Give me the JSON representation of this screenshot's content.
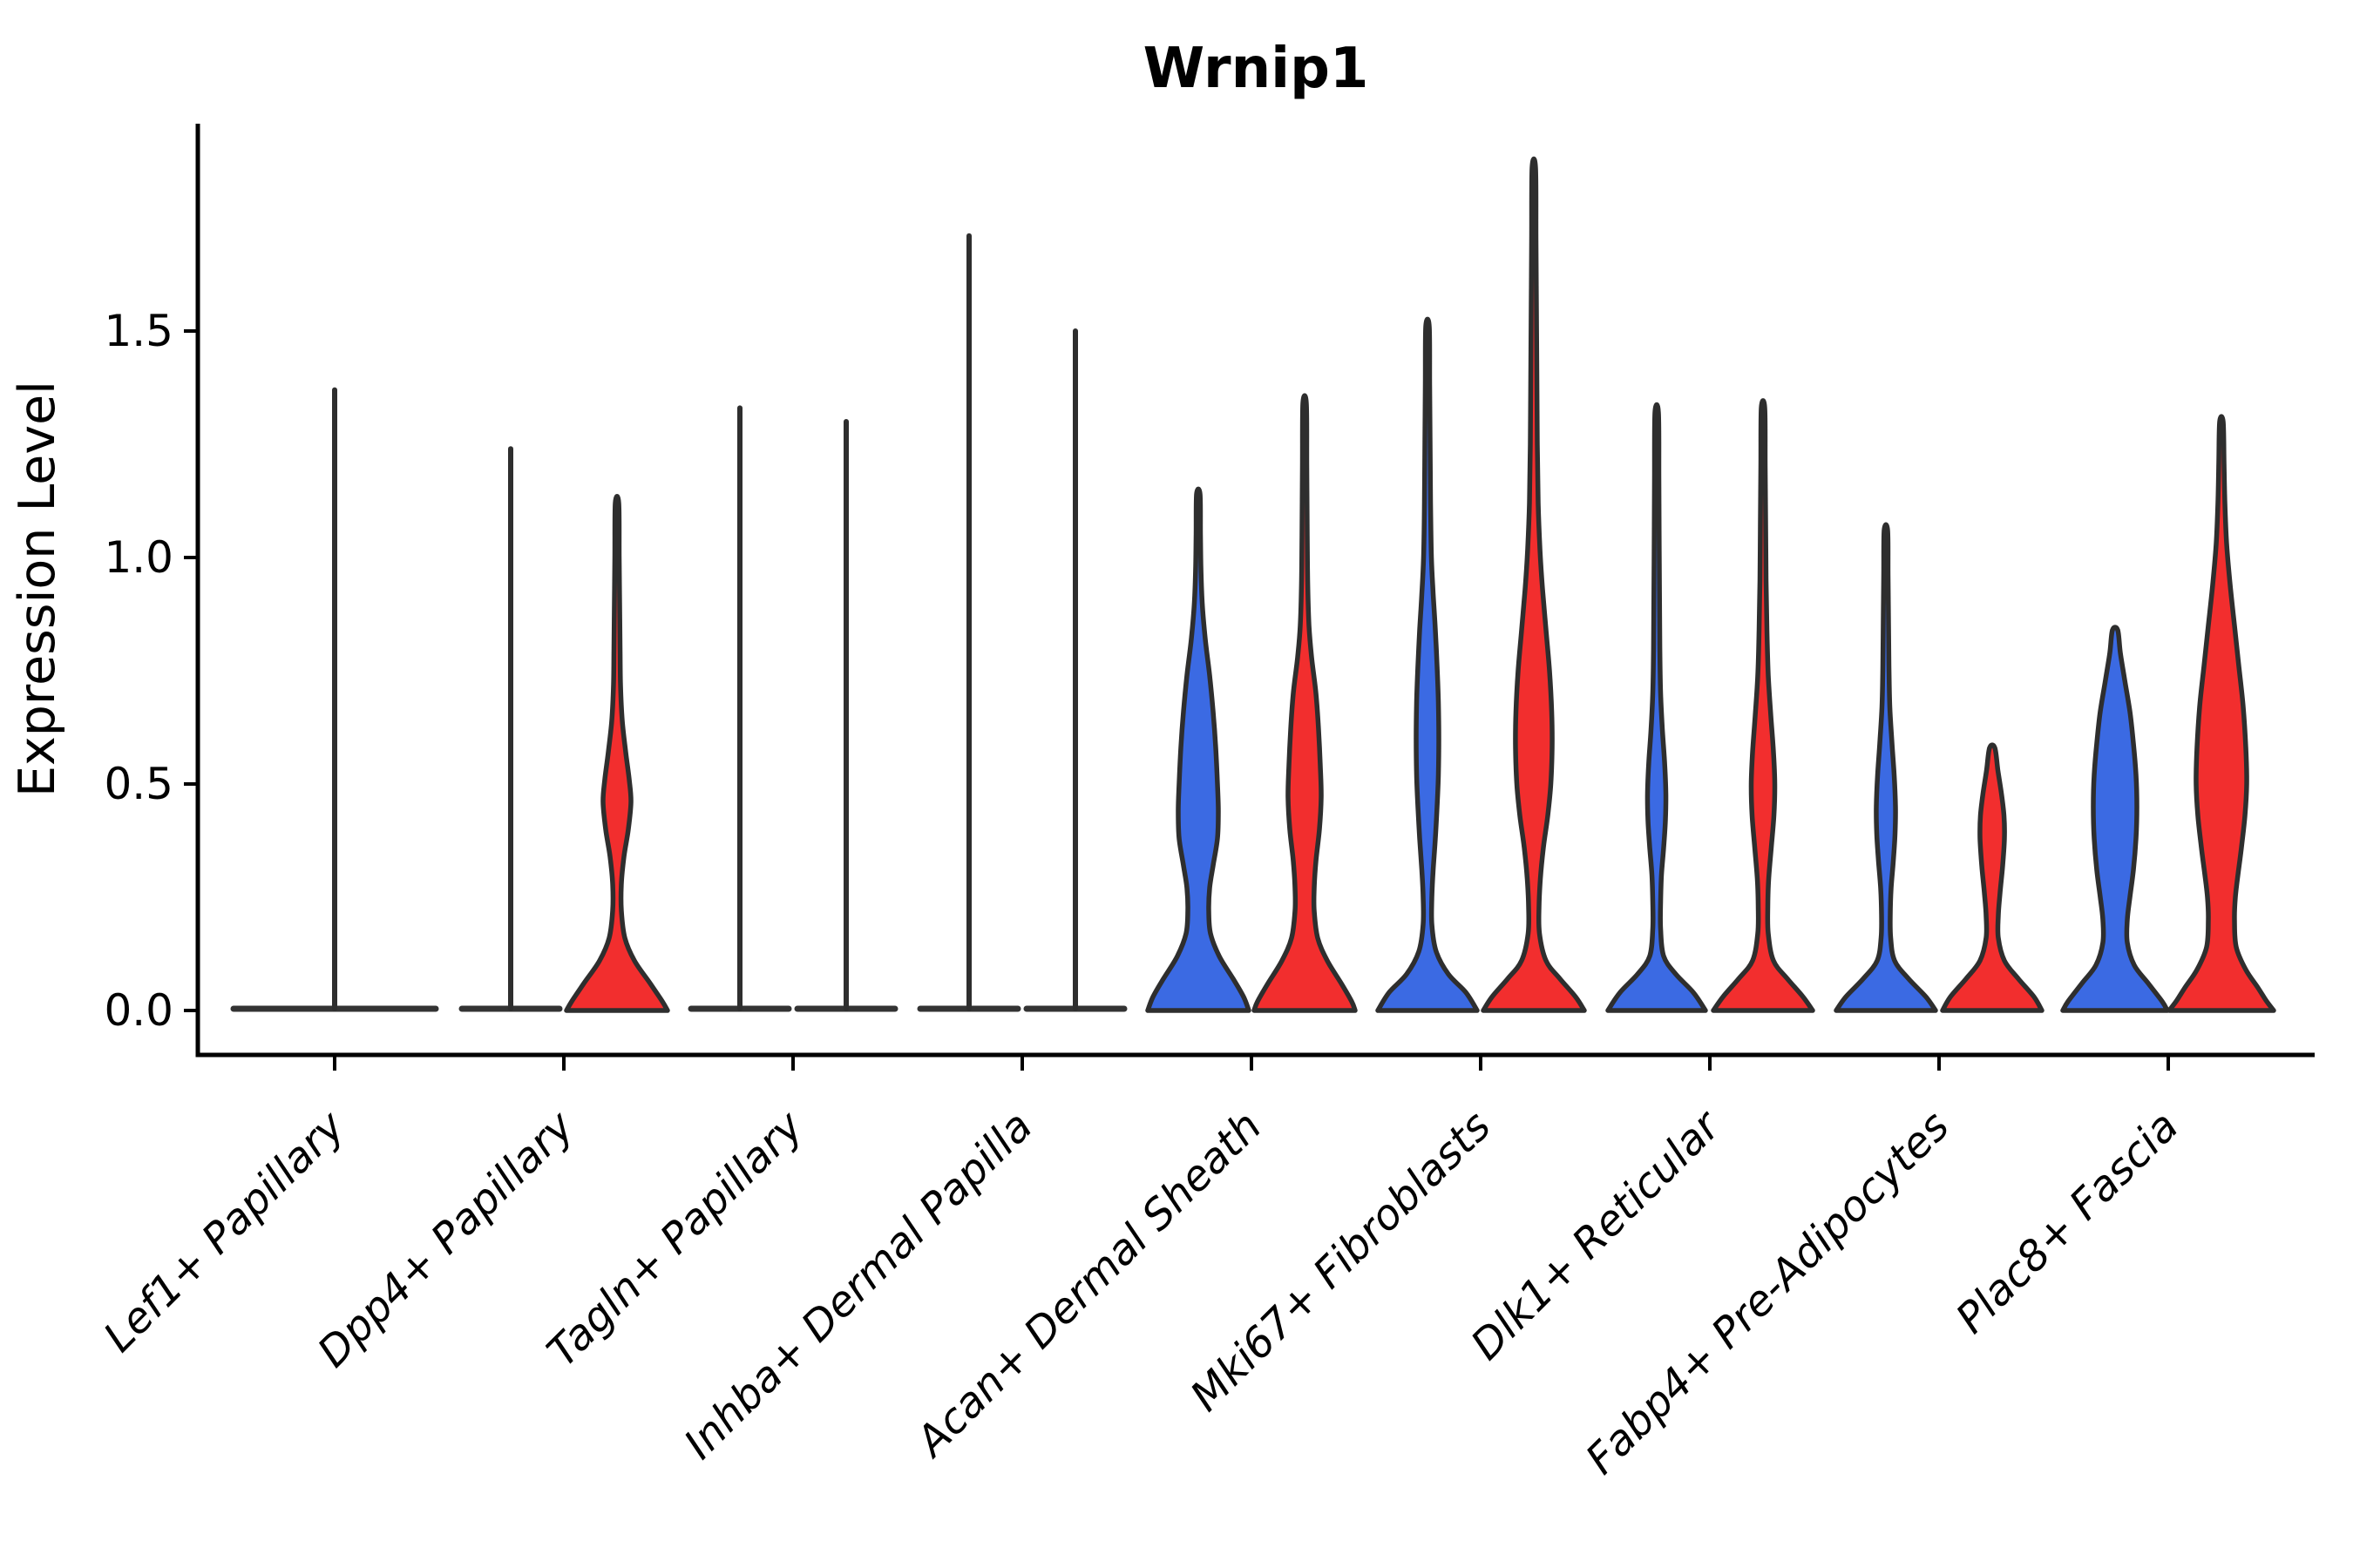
{
  "title": "Wrnip1",
  "y_axis": {
    "label": "Expression Level",
    "ticks": [
      "0.0",
      "0.5",
      "1.0",
      "1.5"
    ],
    "tick_values": [
      0.0,
      0.5,
      1.0,
      1.5
    ]
  },
  "x_axis": {
    "categories": [
      "Lef1+ Papillary",
      "Dpp4+ Papillary",
      "Tagln+ Papillary",
      "Inhba+ Dermal Papilla",
      "Acan+ Dermal Sheath",
      "Mki67+ Fibroblasts",
      "Dlk1+ Reticular",
      "Fabp4+ Pre-Adipocytes",
      "Plac8+ Fascia"
    ]
  },
  "colors": {
    "blue": "#3B6AE3",
    "red": "#F22E2E",
    "outline": "#2E2E2E",
    "flat_line": "#333333",
    "axis": "#000000",
    "text": "#000000"
  },
  "chart_data": {
    "type": "violin",
    "title": "Wrnip1",
    "ylabel": "Expression Level",
    "ylim": [
      -0.1,
      1.96
    ],
    "yticks": [
      0.0,
      0.5,
      1.0,
      1.5
    ],
    "grid": false,
    "legend": "none",
    "hues": [
      "blue",
      "red"
    ],
    "categories": [
      "Lef1+ Papillary",
      "Dpp4+ Papillary",
      "Tagln+ Papillary",
      "Inhba+ Dermal Papilla",
      "Acan+ Dermal Sheath",
      "Mki67+ Fibroblasts",
      "Dlk1+ Reticular",
      "Fabp4+ Pre-Adipocytes",
      "Plac8+ Fascia"
    ],
    "groups": [
      {
        "label": "Lef1+ Papillary",
        "violins": [
          {
            "hue": "none",
            "style": "flat",
            "offset": 0,
            "flat_halfwidth": 119,
            "max": 1.37
          }
        ]
      },
      {
        "label": "Dpp4+ Papillary",
        "violins": [
          {
            "hue": "blue",
            "style": "flat",
            "offset": -61,
            "flat_halfwidth": 59,
            "max": 1.24
          },
          {
            "hue": "red",
            "style": "violin",
            "offset": 61,
            "max": 1.12,
            "profile": [
              [
                1.12,
                2
              ],
              [
                1.0,
                2.5
              ],
              [
                0.9,
                3
              ],
              [
                0.8,
                3.5
              ],
              [
                0.72,
                4
              ],
              [
                0.64,
                6
              ],
              [
                0.57,
                10
              ],
              [
                0.51,
                14
              ],
              [
                0.46,
                16
              ],
              [
                0.4,
                13
              ],
              [
                0.34,
                8
              ],
              [
                0.28,
                5
              ],
              [
                0.22,
                5
              ],
              [
                0.16,
                9
              ],
              [
                0.11,
                20
              ],
              [
                0.06,
                38
              ],
              [
                0.02,
                52
              ],
              [
                0,
                58
              ]
            ]
          }
        ]
      },
      {
        "label": "Tagln+ Papillary",
        "violins": [
          {
            "hue": "blue",
            "style": "flat",
            "offset": -61,
            "flat_halfwidth": 59,
            "max": 1.33
          },
          {
            "hue": "red",
            "style": "flat",
            "offset": 61,
            "flat_halfwidth": 59,
            "max": 1.3
          }
        ]
      },
      {
        "label": "Inhba+ Dermal Papilla",
        "violins": [
          {
            "hue": "blue",
            "style": "flat",
            "offset": -61,
            "flat_halfwidth": 59,
            "max": 1.71
          },
          {
            "hue": "red",
            "style": "flat",
            "offset": 61,
            "flat_halfwidth": 59,
            "max": 1.5
          }
        ]
      },
      {
        "label": "Acan+ Dermal Sheath",
        "violins": [
          {
            "hue": "blue",
            "style": "violin",
            "offset": -61,
            "max": 1.14,
            "profile": [
              [
                1.14,
                2
              ],
              [
                1.05,
                2.5
              ],
              [
                0.98,
                3
              ],
              [
                0.9,
                4.5
              ],
              [
                0.82,
                8
              ],
              [
                0.74,
                13
              ],
              [
                0.66,
                17
              ],
              [
                0.58,
                20
              ],
              [
                0.5,
                22
              ],
              [
                0.44,
                23
              ],
              [
                0.38,
                22
              ],
              [
                0.32,
                17
              ],
              [
                0.27,
                13
              ],
              [
                0.22,
                12
              ],
              [
                0.17,
                14
              ],
              [
                0.12,
                24
              ],
              [
                0.07,
                40
              ],
              [
                0.03,
                52
              ],
              [
                0,
                58
              ]
            ]
          },
          {
            "hue": "red",
            "style": "violin",
            "offset": 61,
            "max": 1.34,
            "profile": [
              [
                1.34,
                2
              ],
              [
                1.2,
                2.5
              ],
              [
                1.05,
                3
              ],
              [
                0.95,
                3.5
              ],
              [
                0.85,
                5
              ],
              [
                0.78,
                8
              ],
              [
                0.7,
                13
              ],
              [
                0.62,
                16
              ],
              [
                0.54,
                18
              ],
              [
                0.47,
                19
              ],
              [
                0.4,
                17
              ],
              [
                0.33,
                13
              ],
              [
                0.27,
                11
              ],
              [
                0.22,
                11
              ],
              [
                0.16,
                15
              ],
              [
                0.11,
                26
              ],
              [
                0.06,
                42
              ],
              [
                0.02,
                54
              ],
              [
                0,
                58
              ]
            ]
          }
        ]
      },
      {
        "label": "Mki67+ Fibroblasts",
        "violins": [
          {
            "hue": "blue",
            "style": "violin",
            "offset": -61,
            "max": 1.51,
            "profile": [
              [
                1.51,
                2
              ],
              [
                1.38,
                2.5
              ],
              [
                1.25,
                3
              ],
              [
                1.12,
                3.5
              ],
              [
                1.0,
                4.5
              ],
              [
                0.92,
                6.5
              ],
              [
                0.84,
                9
              ],
              [
                0.76,
                11
              ],
              [
                0.68,
                12.5
              ],
              [
                0.6,
                13
              ],
              [
                0.52,
                12.5
              ],
              [
                0.45,
                11
              ],
              [
                0.38,
                9
              ],
              [
                0.31,
                6.5
              ],
              [
                0.25,
                5
              ],
              [
                0.19,
                5
              ],
              [
                0.13,
                10
              ],
              [
                0.08,
                24
              ],
              [
                0.04,
                44
              ],
              [
                0,
                57
              ]
            ]
          },
          {
            "hue": "red",
            "style": "violin",
            "offset": 61,
            "max": 1.86,
            "profile": [
              [
                1.86,
                2
              ],
              [
                1.7,
                2.5
              ],
              [
                1.55,
                3
              ],
              [
                1.4,
                3.5
              ],
              [
                1.25,
                4
              ],
              [
                1.12,
                5
              ],
              [
                1.02,
                7
              ],
              [
                0.93,
                10
              ],
              [
                0.84,
                14
              ],
              [
                0.75,
                18
              ],
              [
                0.66,
                20.5
              ],
              [
                0.58,
                21
              ],
              [
                0.5,
                19.5
              ],
              [
                0.43,
                16
              ],
              [
                0.36,
                11
              ],
              [
                0.29,
                7.5
              ],
              [
                0.23,
                6
              ],
              [
                0.17,
                6.5
              ],
              [
                0.11,
                14
              ],
              [
                0.07,
                30
              ],
              [
                0.03,
                48
              ],
              [
                0,
                58
              ]
            ]
          }
        ]
      },
      {
        "label": "Dlk1+ Reticular",
        "violins": [
          {
            "hue": "blue",
            "style": "violin",
            "offset": -61,
            "max": 1.32,
            "profile": [
              [
                1.32,
                2
              ],
              [
                1.18,
                2.5
              ],
              [
                1.05,
                2.8
              ],
              [
                0.92,
                3.2
              ],
              [
                0.8,
                3.6
              ],
              [
                0.7,
                4.5
              ],
              [
                0.62,
                6.5
              ],
              [
                0.55,
                9
              ],
              [
                0.48,
                10.5
              ],
              [
                0.42,
                10
              ],
              [
                0.36,
                8
              ],
              [
                0.3,
                5.5
              ],
              [
                0.24,
                4.5
              ],
              [
                0.18,
                4.5
              ],
              [
                0.12,
                8
              ],
              [
                0.08,
                22
              ],
              [
                0.04,
                42
              ],
              [
                0,
                56
              ]
            ]
          },
          {
            "hue": "red",
            "style": "violin",
            "offset": 61,
            "max": 1.33,
            "profile": [
              [
                1.33,
                2
              ],
              [
                1.2,
                2.5
              ],
              [
                1.08,
                3
              ],
              [
                0.95,
                3.5
              ],
              [
                0.84,
                4.5
              ],
              [
                0.74,
                6
              ],
              [
                0.65,
                9
              ],
              [
                0.57,
                12
              ],
              [
                0.5,
                13.5
              ],
              [
                0.43,
                12.5
              ],
              [
                0.36,
                9.5
              ],
              [
                0.29,
                6.5
              ],
              [
                0.23,
                5.5
              ],
              [
                0.17,
                6
              ],
              [
                0.11,
                12
              ],
              [
                0.07,
                28
              ],
              [
                0.03,
                46
              ],
              [
                0,
                57
              ]
            ]
          }
        ]
      },
      {
        "label": "Fabp4+ Pre-Adipocytes",
        "violins": [
          {
            "hue": "blue",
            "style": "violin",
            "offset": -61,
            "max": 1.06,
            "profile": [
              [
                1.06,
                2
              ],
              [
                0.96,
                2.5
              ],
              [
                0.86,
                3
              ],
              [
                0.76,
                3.5
              ],
              [
                0.67,
                4.5
              ],
              [
                0.59,
                7
              ],
              [
                0.52,
                9.5
              ],
              [
                0.45,
                11
              ],
              [
                0.39,
                10.5
              ],
              [
                0.33,
                8.5
              ],
              [
                0.27,
                6
              ],
              [
                0.21,
                5
              ],
              [
                0.16,
                5.5
              ],
              [
                0.11,
                10
              ],
              [
                0.07,
                26
              ],
              [
                0.03,
                46
              ],
              [
                0,
                57
              ]
            ]
          },
          {
            "hue": "red",
            "style": "violin",
            "offset": 61,
            "max": 0.58,
            "profile": [
              [
                0.58,
                3
              ],
              [
                0.53,
                6.5
              ],
              [
                0.48,
                10.5
              ],
              [
                0.43,
                13.5
              ],
              [
                0.38,
                14
              ],
              [
                0.32,
                12
              ],
              [
                0.26,
                9
              ],
              [
                0.21,
                7
              ],
              [
                0.16,
                7
              ],
              [
                0.11,
                14
              ],
              [
                0.07,
                30
              ],
              [
                0.03,
                48
              ],
              [
                0,
                57
              ]
            ]
          }
        ]
      },
      {
        "label": "Plac8+ Fascia",
        "violins": [
          {
            "hue": "blue",
            "style": "violin",
            "offset": -61,
            "max": 0.84,
            "profile": [
              [
                0.84,
                3
              ],
              [
                0.79,
                6
              ],
              [
                0.73,
                11
              ],
              [
                0.66,
                17
              ],
              [
                0.59,
                21
              ],
              [
                0.52,
                24
              ],
              [
                0.45,
                25
              ],
              [
                0.38,
                24
              ],
              [
                0.31,
                21
              ],
              [
                0.25,
                17
              ],
              [
                0.2,
                14
              ],
              [
                0.15,
                14
              ],
              [
                0.1,
                22
              ],
              [
                0.06,
                38
              ],
              [
                0.02,
                54
              ],
              [
                0,
                60
              ]
            ]
          },
          {
            "hue": "red",
            "style": "violin",
            "offset": 61,
            "max": 1.3,
            "profile": [
              [
                1.3,
                2
              ],
              [
                1.21,
                3
              ],
              [
                1.12,
                4
              ],
              [
                1.03,
                6
              ],
              [
                0.94,
                10
              ],
              [
                0.85,
                15
              ],
              [
                0.76,
                20
              ],
              [
                0.67,
                25
              ],
              [
                0.58,
                28
              ],
              [
                0.5,
                29
              ],
              [
                0.43,
                27
              ],
              [
                0.36,
                23
              ],
              [
                0.3,
                19
              ],
              [
                0.25,
                16
              ],
              [
                0.2,
                15
              ],
              [
                0.14,
                17
              ],
              [
                0.09,
                28
              ],
              [
                0.05,
                42
              ],
              [
                0.02,
                52
              ],
              [
                0,
                60
              ]
            ]
          }
        ]
      }
    ]
  }
}
